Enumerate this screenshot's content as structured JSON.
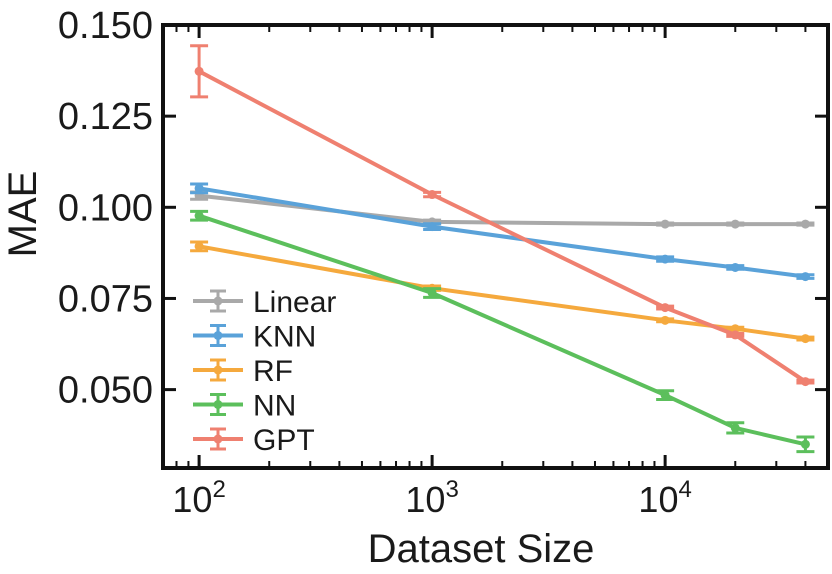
{
  "chart_data": {
    "type": "line",
    "xlabel": "Dataset Size",
    "ylabel": "MAE",
    "xscale": "log",
    "xlim": [
      70,
      50000
    ],
    "ylim": [
      0.0285,
      0.15
    ],
    "x_ticks": [
      {
        "value": 100,
        "base": "10",
        "exp": "2"
      },
      {
        "value": 1000,
        "base": "10",
        "exp": "3"
      },
      {
        "value": 10000,
        "base": "10",
        "exp": "4"
      }
    ],
    "y_ticks": [
      {
        "value": 0.05,
        "label": "0.050"
      },
      {
        "value": 0.075,
        "label": "0.075"
      },
      {
        "value": 0.1,
        "label": "0.100"
      },
      {
        "value": 0.125,
        "label": "0.125"
      },
      {
        "value": 0.15,
        "label": "0.150"
      }
    ],
    "grid": false,
    "legend_position": "lower-left",
    "error_bars": true,
    "series": [
      {
        "name": "Linear",
        "color": "#a9a9a9",
        "x": [
          100,
          1000,
          10000,
          20000,
          40000
        ],
        "y": [
          0.1032,
          0.096,
          0.0954,
          0.0954,
          0.0954
        ],
        "err": [
          0.001,
          0.0005,
          0.0003,
          0.0003,
          0.0003
        ]
      },
      {
        "name": "KNN",
        "color": "#5aa2d9",
        "x": [
          100,
          1000,
          10000,
          20000,
          40000
        ],
        "y": [
          0.1052,
          0.0947,
          0.0858,
          0.0835,
          0.081
        ],
        "err": [
          0.0012,
          0.0008,
          0.0006,
          0.0005,
          0.0005
        ]
      },
      {
        "name": "RF",
        "color": "#f5a93d",
        "x": [
          100,
          1000,
          10000,
          20000,
          40000
        ],
        "y": [
          0.0893,
          0.0778,
          0.069,
          0.0667,
          0.064
        ],
        "err": [
          0.0012,
          0.0006,
          0.0004,
          0.0004,
          0.0004
        ]
      },
      {
        "name": "NN",
        "color": "#5cbf5c",
        "x": [
          100,
          1000,
          10000,
          20000,
          40000
        ],
        "y": [
          0.0977,
          0.0765,
          0.0485,
          0.0395,
          0.035
        ],
        "err": [
          0.0012,
          0.0012,
          0.0012,
          0.0014,
          0.002
        ]
      },
      {
        "name": "GPT",
        "color": "#ef8070",
        "x": [
          100,
          1000,
          10000,
          20000,
          40000
        ],
        "y": [
          0.1373,
          0.1035,
          0.0725,
          0.065,
          0.0522
        ],
        "err": [
          0.007,
          0.0006,
          0.0004,
          0.0004,
          0.0004
        ]
      }
    ]
  }
}
